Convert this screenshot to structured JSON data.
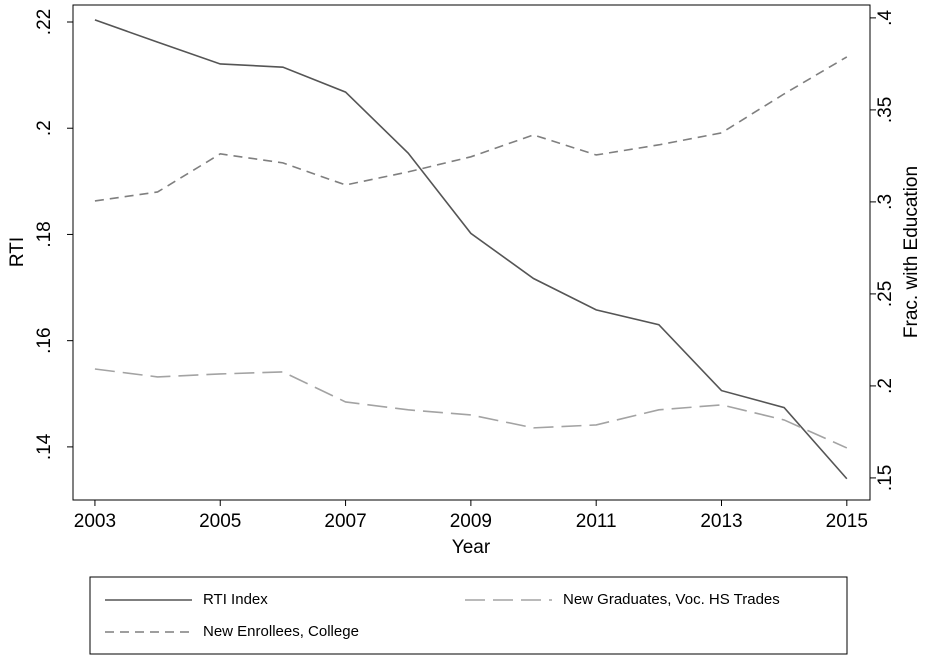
{
  "chart_data": {
    "type": "line",
    "x_label": "Year",
    "y_label": "RTI",
    "y2_label": "Frac. with Education",
    "x": [
      2003,
      2004,
      2005,
      2006,
      2007,
      2008,
      2009,
      2010,
      2011,
      2012,
      2013,
      2014,
      2015
    ],
    "xlim": [
      2002.65,
      2015.37
    ],
    "xticks": [
      2003,
      2005,
      2007,
      2009,
      2011,
      2013,
      2015
    ],
    "ylim": [
      0.13,
      0.2232
    ],
    "yticks": [
      {
        "value": 0.14,
        "label": ".14"
      },
      {
        "value": 0.16,
        "label": ".16"
      },
      {
        "value": 0.18,
        "label": ".18"
      },
      {
        "value": 0.2,
        "label": ".2"
      },
      {
        "value": 0.22,
        "label": ".22"
      }
    ],
    "y2lim": [
      0.138,
      0.407
    ],
    "y2ticks": [
      {
        "value": 0.15,
        "label": ".15"
      },
      {
        "value": 0.2,
        "label": ".2"
      },
      {
        "value": 0.25,
        "label": ".25"
      },
      {
        "value": 0.3,
        "label": ".3"
      },
      {
        "value": 0.35,
        "label": ".35"
      },
      {
        "value": 0.4,
        "label": ".4"
      }
    ],
    "legend": "bottom",
    "series": [
      {
        "name": "RTI Index",
        "color": "#555555",
        "dash": "none",
        "values": [
          0.2204,
          0.2162,
          0.2121,
          0.2115,
          0.2068,
          0.1953,
          0.1802,
          0.1717,
          0.1658,
          0.163,
          0.1506,
          0.1474,
          0.134
        ]
      },
      {
        "name": "New Graduates, Voc. HS Trades",
        "color": "#a3a3a3",
        "dash": "20,8",
        "axis": "y2",
        "values": [
          0.2092,
          0.2049,
          0.2065,
          0.2076,
          0.1913,
          0.187,
          0.1842,
          0.1772,
          0.1788,
          0.187,
          0.1897,
          0.1815,
          0.1663
        ]
      },
      {
        "name": "New Enrollees, College",
        "color": "#7f7f7f",
        "dash": "9,6",
        "axis": "y2",
        "values": [
          0.3005,
          0.3054,
          0.3261,
          0.3212,
          0.3092,
          0.3163,
          0.3245,
          0.3364,
          0.3255,
          0.331,
          0.3375,
          0.3587,
          0.3788
        ]
      }
    ]
  }
}
